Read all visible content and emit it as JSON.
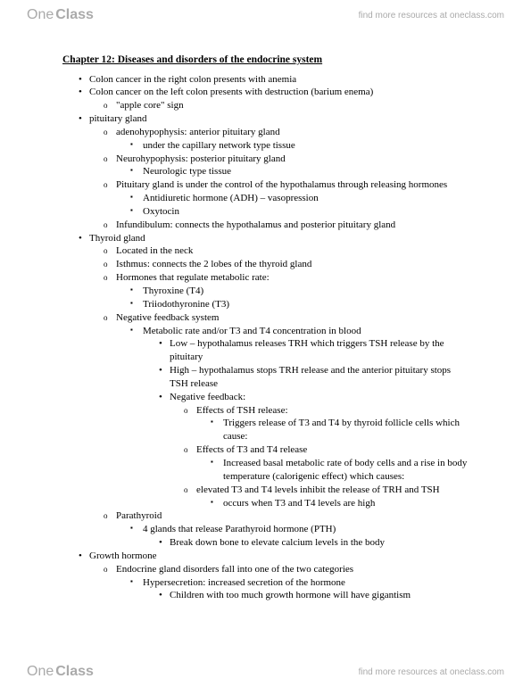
{
  "brand": {
    "one": "One",
    "class": "Class"
  },
  "findText": "find more resources at oneclass.com",
  "title": "Chapter 12: Diseases and disorders of the endocrine system",
  "lines": [
    {
      "lvl": 1,
      "t": "Colon cancer in the right colon presents with anemia"
    },
    {
      "lvl": 1,
      "t": "Colon cancer on the left colon presents with destruction (barium enema)"
    },
    {
      "lvl": 2,
      "t": "\"apple core\" sign"
    },
    {
      "lvl": 1,
      "t": "pituitary gland"
    },
    {
      "lvl": 2,
      "t": "adenohypophysis: anterior pituitary gland"
    },
    {
      "lvl": 3,
      "t": "under the capillary network type tissue"
    },
    {
      "lvl": 2,
      "t": "Neurohypophysis: posterior pituitary gland"
    },
    {
      "lvl": 3,
      "t": "Neurologic type tissue"
    },
    {
      "lvl": 2,
      "t": "Pituitary gland is under the control of the hypothalamus through releasing hormones"
    },
    {
      "lvl": 3,
      "t": "Antidiuretic hormone (ADH) – vasopression"
    },
    {
      "lvl": 3,
      "t": "Oxytocin"
    },
    {
      "lvl": 2,
      "t": "Infundibulum: connects the hypothalamus and posterior pituitary gland"
    },
    {
      "lvl": 1,
      "t": "Thyroid gland"
    },
    {
      "lvl": 2,
      "t": "Located in the neck"
    },
    {
      "lvl": 2,
      "t": "Isthmus: connects the 2 lobes of the thyroid gland"
    },
    {
      "lvl": 2,
      "t": "Hormones that regulate metabolic rate:"
    },
    {
      "lvl": 3,
      "t": "Thyroxine (T4)"
    },
    {
      "lvl": 3,
      "t": "Triiodothyronine (T3)"
    },
    {
      "lvl": 2,
      "t": "Negative feedback system"
    },
    {
      "lvl": 3,
      "t": "Metabolic rate and/or T3 and T4 concentration in blood"
    },
    {
      "lvl": 4,
      "t": "Low – hypothalamus releases TRH which triggers TSH release by the pituitary"
    },
    {
      "lvl": 4,
      "t": "High – hypothalamus stops TRH release and the anterior pituitary stops TSH release"
    },
    {
      "lvl": 4,
      "t": "Negative feedback:"
    },
    {
      "lvl": 5,
      "t": "Effects of TSH release:"
    },
    {
      "lvl": 6,
      "t": "Triggers release of T3 and T4 by thyroid follicle cells which cause:"
    },
    {
      "lvl": 5,
      "t": "Effects of T3 and T4 release"
    },
    {
      "lvl": 6,
      "t": "Increased basal metabolic rate of body cells and a rise in body temperature (calorigenic effect) which causes:"
    },
    {
      "lvl": 5,
      "t": "elevated T3 and T4 levels inhibit the release of TRH and TSH"
    },
    {
      "lvl": 6,
      "t": "occurs when T3 and T4 levels are high"
    },
    {
      "lvl": 2,
      "t": "Parathyroid"
    },
    {
      "lvl": 3,
      "t": "4 glands that release Parathyroid hormone (PTH)"
    },
    {
      "lvl": 4,
      "t": "Break down bone to elevate calcium levels in the body"
    },
    {
      "lvl": 1,
      "t": "Growth hormone"
    },
    {
      "lvl": 2,
      "t": "Endocrine gland disorders fall into one of the two categories"
    },
    {
      "lvl": 3,
      "t": "Hypersecretion: increased secretion of the hormone"
    },
    {
      "lvl": 4,
      "t": "Children with too much growth hormone will have gigantism"
    }
  ]
}
